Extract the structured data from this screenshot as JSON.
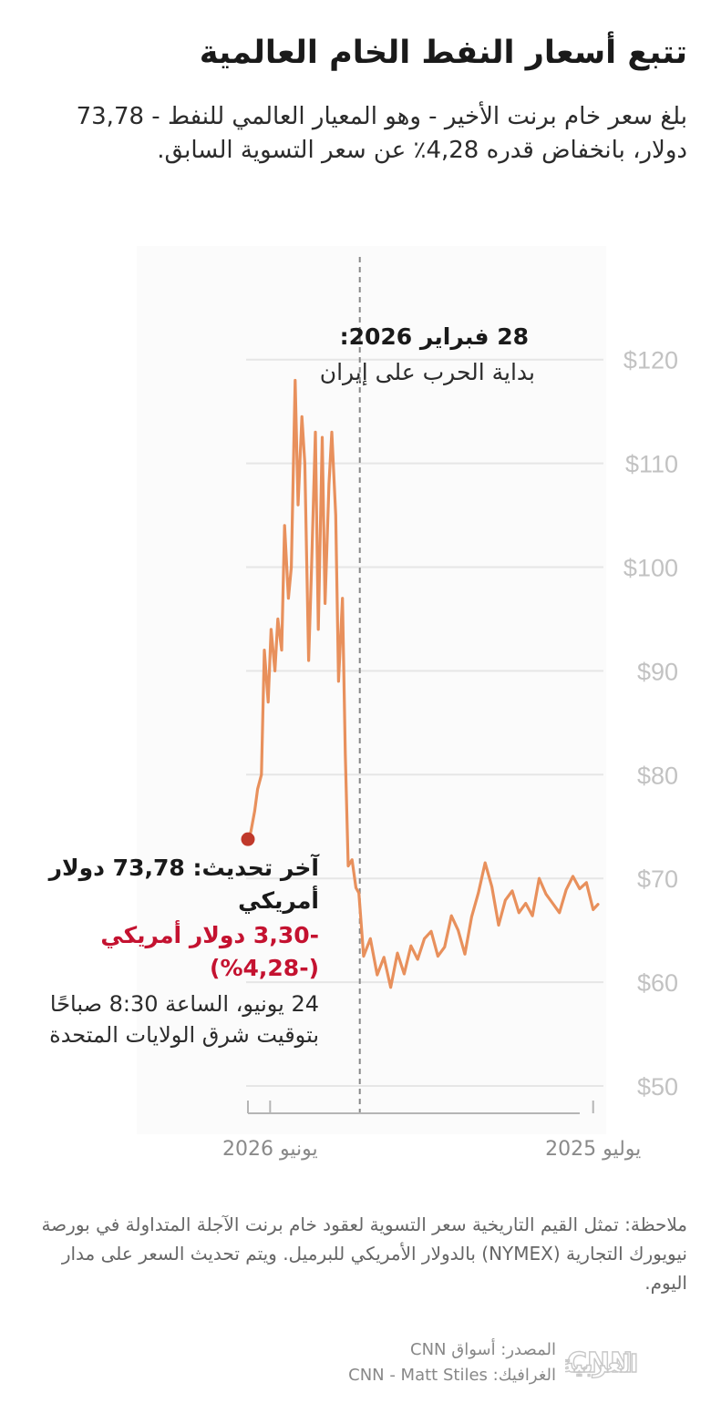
{
  "header": {
    "title": "تتبع أسعار النفط الخام العالمية",
    "subtitle": "بلغ سعر خام برنت الأخير - وهو المعيار العالمي للنفط - 73,78 دولار، بانخفاض قدره 4,28٪ عن سعر التسوية السابق."
  },
  "chart_data": {
    "type": "line",
    "x_direction": "right-to-left",
    "xlim": [
      "2025-06-26",
      "2026-06-24"
    ],
    "xticks": [
      {
        "value": "2025-07-01",
        "label": "يوليو 2025"
      },
      {
        "value": "2026-06-01",
        "label": "يونيو 2026"
      }
    ],
    "ylim": [
      47,
      125
    ],
    "yticks": [
      {
        "value": 50,
        "label": "$50"
      },
      {
        "value": 60,
        "label": "$60"
      },
      {
        "value": 70,
        "label": "$70"
      },
      {
        "value": 80,
        "label": "$80"
      },
      {
        "value": 90,
        "label": "$90"
      },
      {
        "value": 100,
        "label": "$100"
      },
      {
        "value": 110,
        "label": "$110"
      },
      {
        "value": 120,
        "label": "$120"
      }
    ],
    "grid": true,
    "line_color": "#e8905c",
    "marker_color": "#c0392b",
    "series": [
      {
        "x": [
          "2025-06-26",
          "2025-07-01",
          "2025-07-08",
          "2025-07-15",
          "2025-07-22",
          "2025-07-29",
          "2025-08-05",
          "2025-08-12",
          "2025-08-19",
          "2025-08-26",
          "2025-09-02",
          "2025-09-09",
          "2025-09-16",
          "2025-09-23",
          "2025-09-30",
          "2025-10-07",
          "2025-10-14",
          "2025-10-21",
          "2025-10-28",
          "2025-11-04",
          "2025-11-11",
          "2025-11-18",
          "2025-11-25",
          "2025-12-02",
          "2025-12-09",
          "2025-12-16",
          "2025-12-23",
          "2025-12-30",
          "2026-01-06",
          "2026-01-13",
          "2026-01-20",
          "2026-01-27",
          "2026-02-03",
          "2026-02-10",
          "2026-02-17",
          "2026-02-24",
          "2026-03-01",
          "2026-03-04",
          "2026-03-08",
          "2026-03-12",
          "2026-03-15",
          "2026-03-18",
          "2026-03-22",
          "2026-03-25",
          "2026-03-29",
          "2026-04-01",
          "2026-04-05",
          "2026-04-08",
          "2026-04-12",
          "2026-04-15",
          "2026-04-19",
          "2026-04-22",
          "2026-04-26",
          "2026-04-29",
          "2026-05-03",
          "2026-05-06",
          "2026-05-10",
          "2026-05-13",
          "2026-05-17",
          "2026-05-20",
          "2026-05-24",
          "2026-05-27",
          "2026-05-31",
          "2026-06-03",
          "2026-06-07",
          "2026-06-10",
          "2026-06-14",
          "2026-06-17",
          "2026-06-21",
          "2026-06-24"
        ],
        "y": [
          67.5,
          67.0,
          69.6,
          69.0,
          70.2,
          68.9,
          66.7,
          67.6,
          68.5,
          70.0,
          66.4,
          67.6,
          66.7,
          68.8,
          67.9,
          65.5,
          69.2,
          71.5,
          68.6,
          66.3,
          62.7,
          65.0,
          66.4,
          63.4,
          62.5,
          64.9,
          64.2,
          62.2,
          63.5,
          60.8,
          62.8,
          59.5,
          62.4,
          60.7,
          64.2,
          62.5,
          68.6,
          69.1,
          71.8,
          71.2,
          82.0,
          97.0,
          89.0,
          105.0,
          113.0,
          108.0,
          96.5,
          112.5,
          94.0,
          113.0,
          100.0,
          91.0,
          110.0,
          114.5,
          106.0,
          118.0,
          100.0,
          97.0,
          104.0,
          92.0,
          95.0,
          90.0,
          94.0,
          87.0,
          92.0,
          80.0,
          78.6,
          76.5,
          74.5,
          73.78
        ]
      }
    ],
    "event": {
      "date": "2026-02-28",
      "label": "28 فبراير 2026:",
      "description": "بداية الحرب على إيران"
    },
    "latest": {
      "date": "2026-06-24",
      "value": 73.78
    }
  },
  "latest": {
    "label": "آخر تحديث: 73,78 دولار أمريكي",
    "change": "-3,30 دولار أمريكي (-4,28%)",
    "time": "24 يونيو، الساعة 8:30 صباحًا بتوقيت شرق الولايات المتحدة"
  },
  "footer": {
    "note": "ملاحظة: تمثل القيم التاريخية سعر التسوية لعقود خام برنت الآجلة المتداولة في بورصة نيويورك التجارية (NYMEX) بالدولار الأمريكي للبرميل. ويتم تحديث السعر على مدار اليوم.",
    "source": "المصدر: أسواق CNN",
    "graphic": "الغرافيك: CNN - Matt Stiles",
    "logo_text": "العربية CNN"
  }
}
